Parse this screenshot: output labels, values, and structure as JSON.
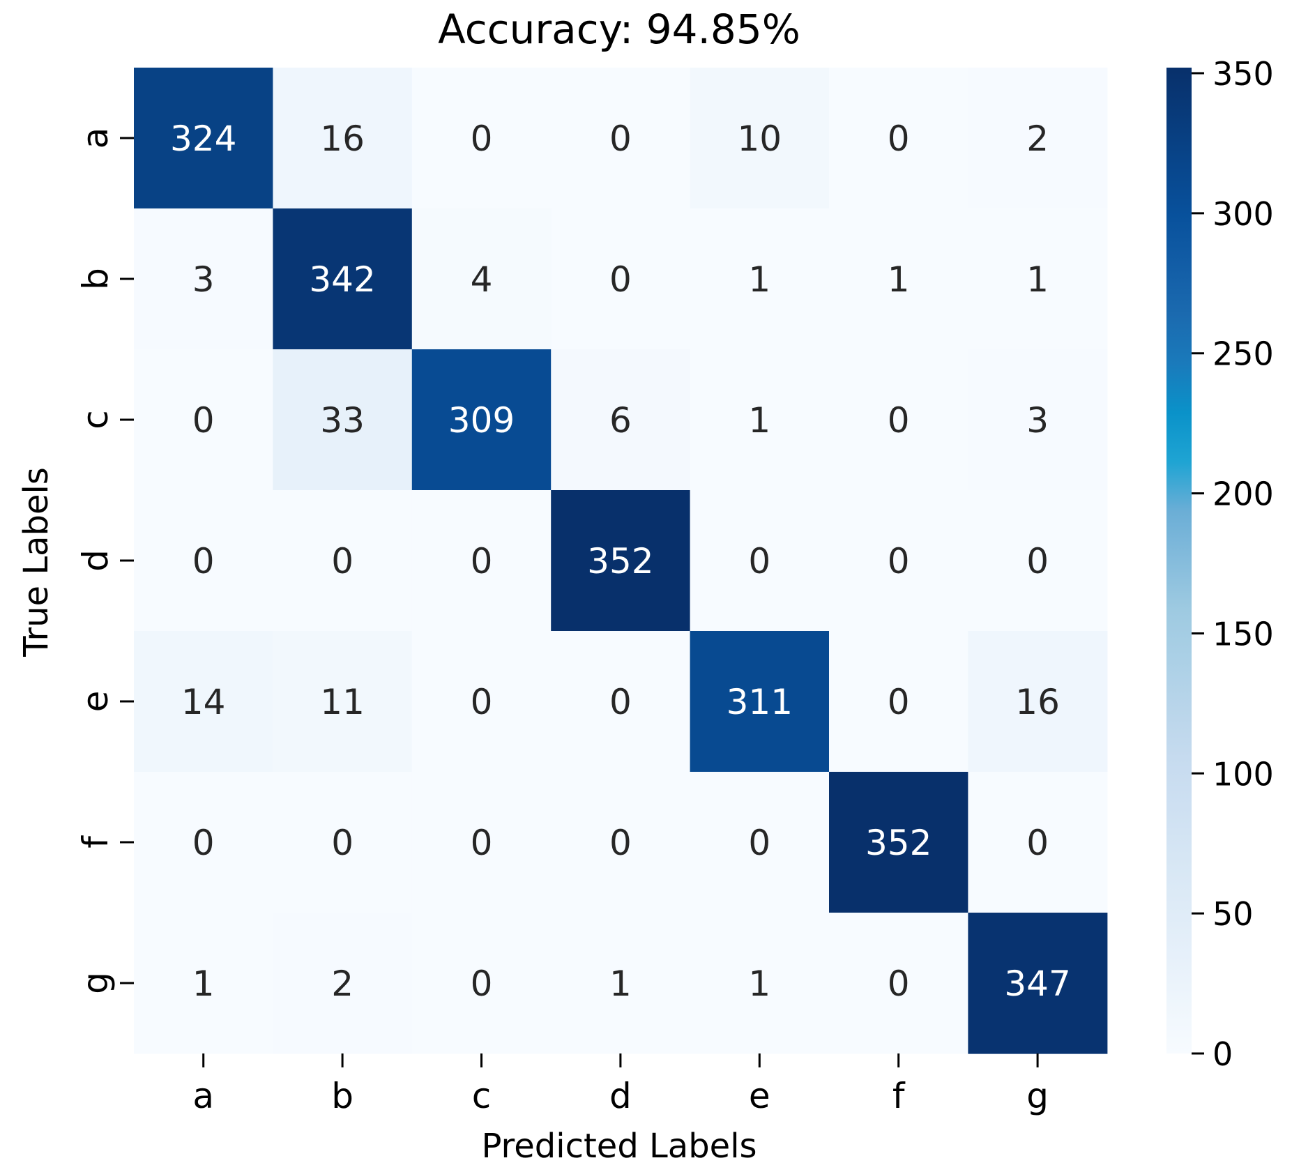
{
  "chart_data": {
    "type": "heatmap",
    "title": "Accuracy: 94.85%",
    "xlabel": "Predicted Labels",
    "ylabel": "True Labels",
    "x_categories": [
      "a",
      "b",
      "c",
      "d",
      "e",
      "f",
      "g"
    ],
    "y_categories": [
      "a",
      "b",
      "c",
      "d",
      "e",
      "f",
      "g"
    ],
    "values": [
      [
        324,
        16,
        0,
        0,
        10,
        0,
        2
      ],
      [
        3,
        342,
        4,
        0,
        1,
        1,
        1
      ],
      [
        0,
        33,
        309,
        6,
        1,
        0,
        3
      ],
      [
        0,
        0,
        0,
        352,
        0,
        0,
        0
      ],
      [
        14,
        11,
        0,
        0,
        311,
        0,
        16
      ],
      [
        0,
        0,
        0,
        0,
        0,
        352,
        0
      ],
      [
        1,
        2,
        0,
        1,
        1,
        0,
        347
      ]
    ],
    "colormap": "Blues",
    "colorbar": {
      "range": [
        0,
        352
      ],
      "ticks": [
        0,
        50,
        100,
        150,
        200,
        250,
        300,
        350
      ]
    },
    "annotations": "cell values shown"
  }
}
